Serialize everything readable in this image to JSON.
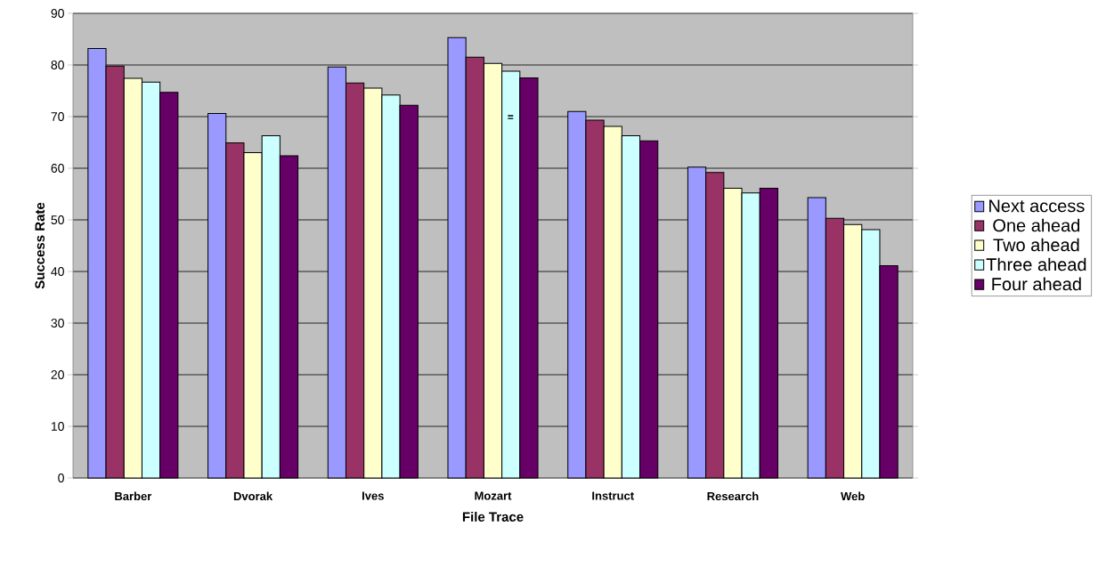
{
  "chart_data": {
    "type": "bar",
    "xlabel": "File Trace",
    "ylabel": "Success Rate",
    "categories": [
      "Barber",
      "Dvorak",
      "Ives",
      "Mozart",
      "Instruct",
      "Research",
      "Web"
    ],
    "series": [
      {
        "name": "Next access",
        "color": "#9999ff",
        "values": [
          83.2,
          70.6,
          79.6,
          85.3,
          71.0,
          60.2,
          54.3
        ]
      },
      {
        "name": "One ahead",
        "color": "#993366",
        "values": [
          79.8,
          64.9,
          76.5,
          81.5,
          69.3,
          59.2,
          50.3
        ]
      },
      {
        "name": "Two ahead",
        "color": "#ffffcc",
        "values": [
          77.4,
          63.0,
          75.5,
          80.3,
          68.1,
          56.1,
          49.1
        ]
      },
      {
        "name": "Three ahead",
        "color": "#ccffff",
        "values": [
          76.7,
          66.3,
          74.2,
          78.8,
          66.3,
          55.2,
          48.1
        ]
      },
      {
        "name": "Four ahead",
        "color": "#660066",
        "values": [
          74.7,
          62.4,
          72.2,
          77.5,
          65.3,
          56.1,
          41.1
        ]
      }
    ],
    "annotations": [
      "="
    ],
    "ylim": [
      0,
      90
    ],
    "yticks": [
      0,
      10,
      20,
      30,
      40,
      50,
      60,
      70,
      80,
      90
    ],
    "grid": "y",
    "legend": "right"
  }
}
